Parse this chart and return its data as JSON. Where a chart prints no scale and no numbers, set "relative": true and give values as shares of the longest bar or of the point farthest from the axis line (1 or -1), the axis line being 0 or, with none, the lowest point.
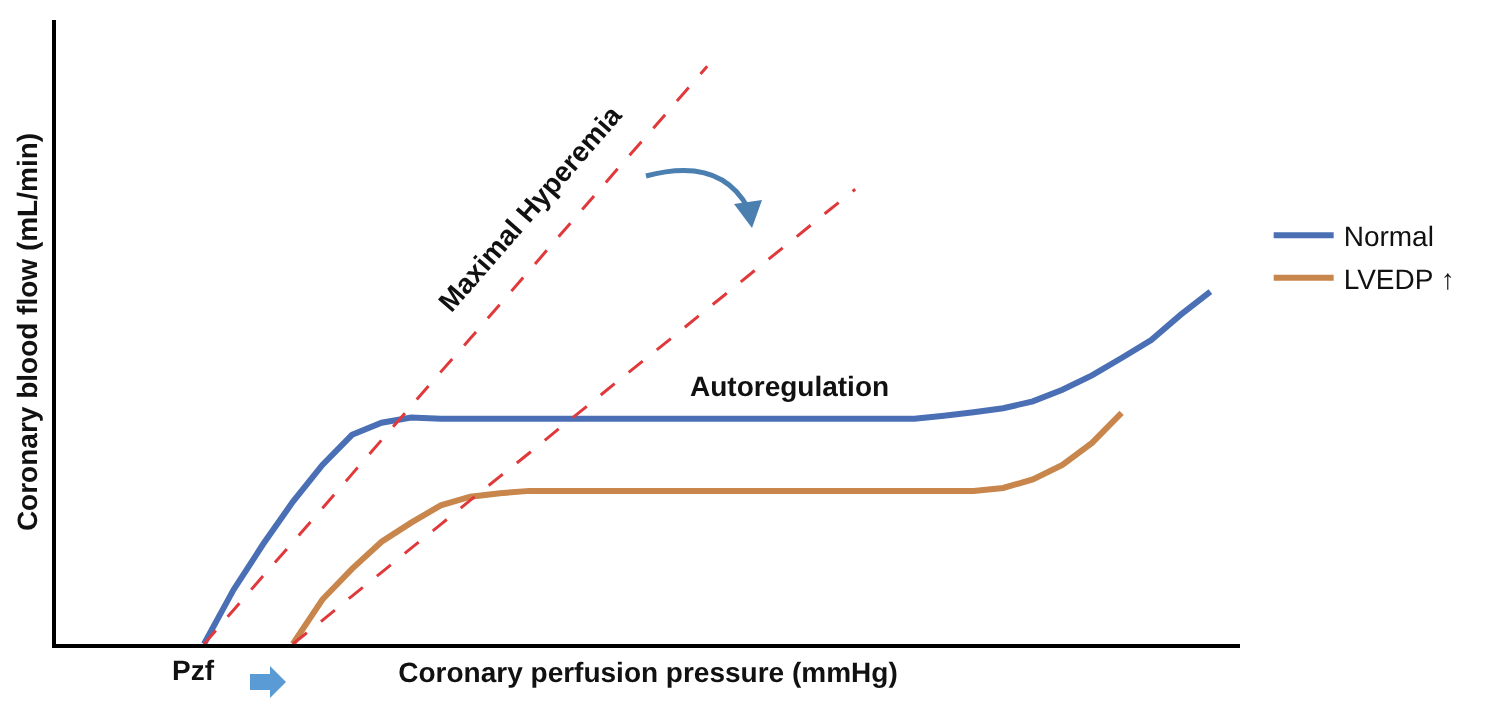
{
  "chart_data": {
    "type": "line",
    "relative": true,
    "xlabel": "Coronary perfusion pressure (mmHg)",
    "ylabel": "Coronary blood flow (mL/min)",
    "grid": false,
    "legend": "right",
    "marker": "none",
    "categories": [
      null,
      null,
      null,
      null,
      null,
      null,
      null,
      null,
      null,
      null,
      null,
      null,
      null,
      null,
      null,
      null,
      null,
      null,
      null,
      null,
      null,
      null,
      null,
      null,
      null,
      null,
      null,
      null,
      null,
      null,
      null,
      null,
      null,
      null,
      null,
      null,
      null,
      null,
      null,
      null,
      null
    ],
    "annotations": [
      "Maximal Hyperemia",
      "Autoregulation",
      "Pzf"
    ],
    "series": [
      {
        "name": "Normal",
        "color": "#4a6fb5",
        "line_style": "solid",
        "values": [
          null,
          null,
          null,
          null,
          null,
          0,
          0.094,
          0.173,
          0.246,
          0.31,
          0.362,
          0.383,
          0.392,
          0.39,
          0.39,
          0.39,
          0.39,
          0.39,
          0.39,
          0.39,
          0.39,
          0.39,
          0.39,
          0.39,
          0.39,
          0.39,
          0.39,
          0.39,
          0.39,
          0.39,
          0.395,
          0.401,
          0.408,
          0.42,
          0.44,
          0.465,
          0.495,
          0.526,
          0.57,
          0.61,
          null
        ]
      },
      {
        "name": "LVEDP ↑",
        "color": "#c8864c",
        "line_style": "solid",
        "values": [
          null,
          null,
          null,
          null,
          null,
          null,
          null,
          null,
          0,
          0.077,
          0.13,
          0.177,
          0.21,
          0.24,
          0.255,
          0.261,
          0.265,
          0.265,
          0.265,
          0.265,
          0.265,
          0.265,
          0.265,
          0.265,
          0.265,
          0.265,
          0.265,
          0.265,
          0.265,
          0.265,
          0.265,
          0.265,
          0.27,
          0.285,
          0.31,
          0.348,
          0.4,
          null,
          null,
          null,
          null
        ]
      },
      {
        "color": "#e0393b",
        "line_style": "dashed",
        "values": [
          null,
          null,
          null,
          null,
          null,
          0,
          0.059,
          0.118,
          0.176,
          0.235,
          0.294,
          0.353,
          0.412,
          0.471,
          0.529,
          0.588,
          0.647,
          0.706,
          0.765,
          0.824,
          0.882,
          0.941,
          1,
          null,
          null,
          null,
          null,
          null,
          null,
          null,
          null,
          null,
          null,
          null,
          null,
          null,
          null,
          null,
          null,
          null,
          null
        ]
      },
      {
        "color": "#e0393b",
        "line_style": "dashed",
        "values": [
          null,
          null,
          null,
          null,
          null,
          null,
          null,
          null,
          0,
          0.041,
          0.083,
          0.124,
          0.166,
          0.207,
          0.249,
          0.29,
          0.331,
          0.373,
          0.414,
          0.456,
          0.497,
          0.538,
          0.58,
          0.621,
          0.663,
          0.704,
          0.746,
          0.787,
          null,
          null,
          null,
          null,
          null,
          null,
          null,
          null,
          null,
          null,
          null,
          null,
          null
        ]
      }
    ]
  }
}
